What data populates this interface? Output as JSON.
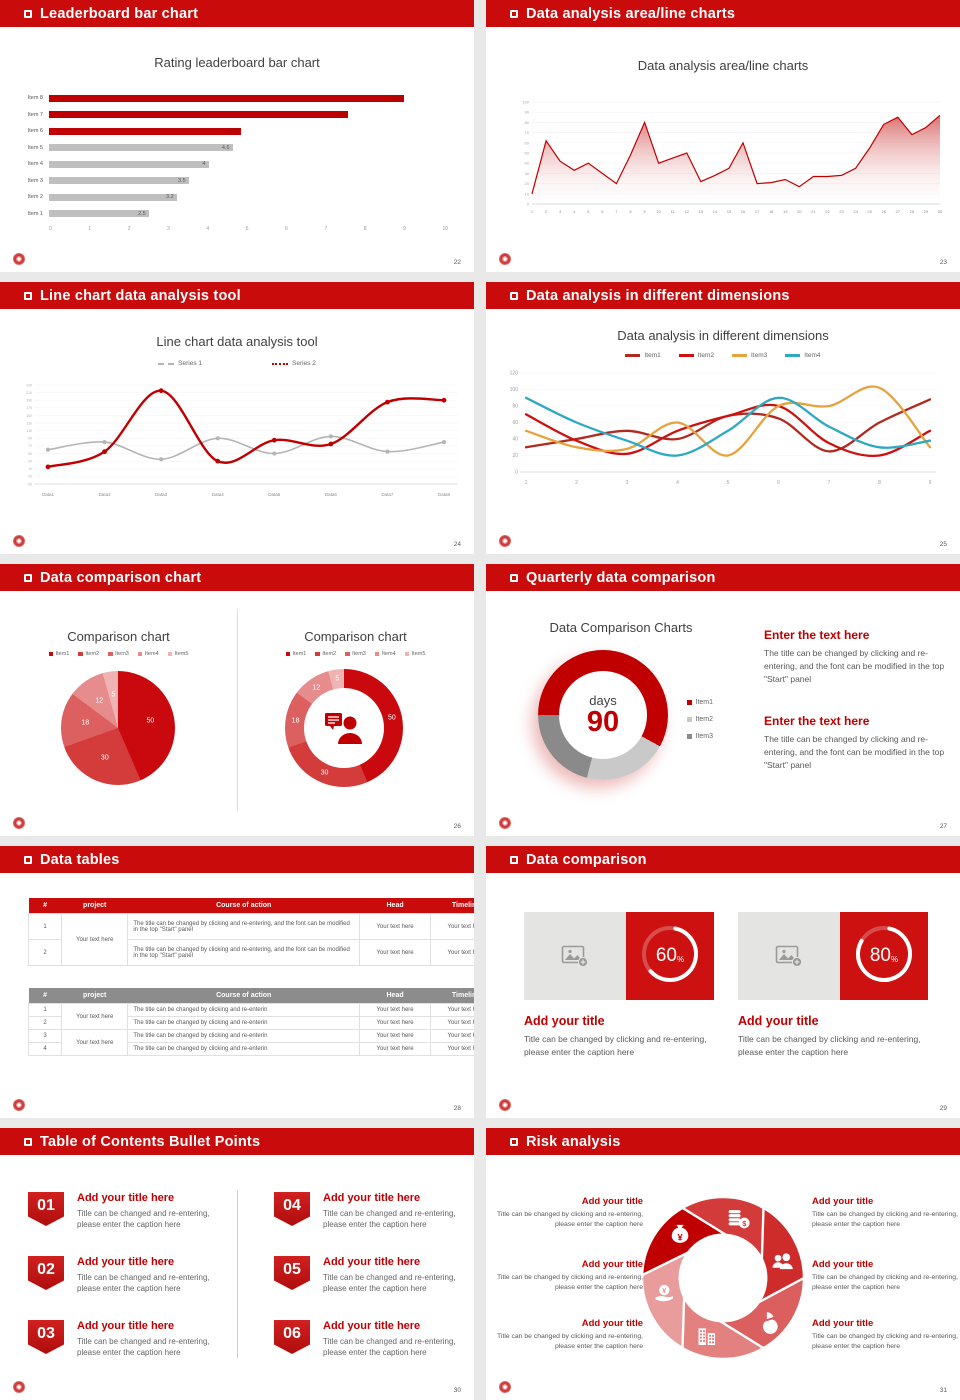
{
  "accent": "#c00000",
  "header_red": "#c90b0b",
  "slides": {
    "leaderboard": {
      "header": "Leaderboard bar chart",
      "page": "22"
    },
    "area": {
      "header": "Data analysis area/line charts",
      "page": "23"
    },
    "linechart": {
      "header": "Line chart data analysis tool",
      "page": "24"
    },
    "dimensions": {
      "header": "Data analysis in different dimensions",
      "page": "25"
    },
    "comparison": {
      "header": "Data comparison chart",
      "page": "26"
    },
    "quarterly": {
      "header": "Quarterly data comparison",
      "page": "27",
      "blocks": [
        {
          "heading": "Enter the text here",
          "body": "The title can be changed by clicking and re-entering, and the font can be modified in the top \"Start\" panel"
        },
        {
          "heading": "Enter the text here",
          "body": "The title can be changed by clicking and re-entering, and the font can be modified in the top \"Start\" panel"
        }
      ]
    },
    "tables": {
      "header": "Data tables",
      "page": "28",
      "columns": [
        "#",
        "project",
        "Course of action",
        "Head",
        "Timeline"
      ],
      "t1": {
        "nums": [
          "1",
          "2"
        ],
        "project": "Your text here",
        "course": "The title can be changed by clicking and re-entering, and the font can be modified in the top \"Start\" panel",
        "cell": "Your text here"
      },
      "t2": {
        "nums": [
          "1",
          "2",
          "3",
          "4"
        ],
        "project": "Your text here",
        "course": "The title can be changed by clicking and re-enterin",
        "cell": "Your text here"
      }
    },
    "datacomp": {
      "header": "Data comparison",
      "page": "29",
      "cards": [
        {
          "percent": "60",
          "unit": "%",
          "title": "Add your title",
          "caption": "Title can be changed by clicking and re-entering, please enter the caption here"
        },
        {
          "percent": "80",
          "unit": "%",
          "title": "Add your title",
          "caption": "Title can be changed by clicking and re-entering, please enter the caption here"
        }
      ]
    },
    "toc": {
      "header": "Table of Contents Bullet Points",
      "page": "30",
      "item_title": "Add your title here",
      "caption": "Title can be changed and re-entering, please enter the caption here",
      "items": [
        {
          "num": "01"
        },
        {
          "num": "02"
        },
        {
          "num": "03"
        },
        {
          "num": "04"
        },
        {
          "num": "05"
        },
        {
          "num": "06"
        }
      ]
    },
    "risk": {
      "header": "Risk analysis",
      "page": "31",
      "block_title": "Add your title",
      "caption": "Title can be changed by clicking and re-entering, please enter the caption here",
      "icons": [
        "money-bag",
        "coins",
        "people-group",
        "pie-chart",
        "building",
        "hand-coin"
      ]
    }
  },
  "chart_data": [
    {
      "type": "bar",
      "orientation": "horizontal",
      "title": "Rating leaderboard bar chart",
      "categories": [
        "Item 8",
        "Item 7",
        "Item 6",
        "Item 5",
        "Item 4",
        "Item 3",
        "Item 2",
        "Item 1"
      ],
      "values": [
        8.9,
        7.5,
        4.8,
        4.6,
        4,
        3.5,
        3.2,
        2.5
      ],
      "bar_colors": [
        "#c00000",
        "#c00000",
        "#c00000",
        "#bfbfbf",
        "#bfbfbf",
        "#bfbfbf",
        "#bfbfbf",
        "#bfbfbf"
      ],
      "xlim": [
        0,
        10
      ],
      "xticks": [
        0,
        1,
        2,
        3,
        4,
        5,
        6,
        7,
        8,
        9,
        10
      ]
    },
    {
      "type": "area",
      "title": "Data analysis area/line charts",
      "x": [
        1,
        2,
        3,
        4,
        5,
        6,
        7,
        8,
        9,
        10,
        11,
        12,
        13,
        14,
        15,
        16,
        17,
        18,
        19,
        20,
        21,
        22,
        23,
        24,
        25,
        26,
        27,
        28,
        29,
        30
      ],
      "values": [
        10,
        62,
        42,
        33,
        40,
        30,
        20,
        48,
        80,
        40,
        45,
        50,
        22,
        28,
        35,
        60,
        20,
        21,
        24,
        17,
        27,
        27,
        28,
        35,
        55,
        78,
        85,
        68,
        75,
        87
      ],
      "ylim": [
        0,
        100
      ],
      "ytick_step": 10,
      "line_color": "#c00000",
      "fill_from": "#d96a6a"
    },
    {
      "type": "line",
      "title": "Line chart data analysis tool",
      "categories": [
        "Data1",
        "Data2",
        "Data3",
        "Data4",
        "Data5",
        "Data6",
        "Data7",
        "Data8"
      ],
      "series": [
        {
          "name": "Series 1",
          "color": "#b5b5b5",
          "values": [
            60,
            80,
            35,
            90,
            50,
            95,
            55,
            80
          ]
        },
        {
          "name": "Series 2",
          "color": "#c00000",
          "values": [
            15,
            55,
            215,
            30,
            85,
            75,
            185,
            190
          ]
        }
      ],
      "ylim": [
        -30,
        230
      ],
      "ytick_step": 20
    },
    {
      "type": "line",
      "title": "Data analysis in different dimensions",
      "x": [
        1,
        2,
        3,
        4,
        5,
        6,
        7,
        8,
        9
      ],
      "series": [
        {
          "name": "Item1",
          "color": "#b02a20",
          "values": [
            30,
            40,
            50,
            40,
            68,
            65,
            25,
            60,
            88
          ]
        },
        {
          "name": "Item2",
          "color": "#cc1111",
          "values": [
            70,
            38,
            22,
            50,
            68,
            80,
            35,
            20,
            50
          ]
        },
        {
          "name": "Item3",
          "color": "#e6a23c",
          "values": [
            50,
            30,
            28,
            60,
            20,
            80,
            80,
            102,
            30
          ]
        },
        {
          "name": "Item4",
          "color": "#2fa8c2",
          "values": [
            90,
            60,
            38,
            20,
            50,
            90,
            55,
            30,
            38
          ]
        }
      ],
      "ylim": [
        0,
        120
      ],
      "ytick_step": 20
    },
    {
      "type": "pie",
      "title_left": "Comparison chart",
      "title_right": "Comparison chart",
      "labels": [
        "Item1",
        "Item2",
        "Item3",
        "Item4",
        "Item5"
      ],
      "values": [
        50,
        30,
        18,
        12,
        5
      ],
      "colors": [
        "#c9090e",
        "#d43c3c",
        "#dd6060",
        "#e68c8c",
        "#f0b3b3"
      ],
      "variants": [
        "pie",
        "donut"
      ]
    },
    {
      "type": "donut",
      "title": "Data Comparison Charts",
      "labels": [
        "Item1",
        "Item2",
        "Item3"
      ],
      "values": [
        58,
        21,
        21
      ],
      "colors": [
        "#c00000",
        "#c9c9c9",
        "#8a8a8a"
      ],
      "center": {
        "label": "days",
        "value": "90"
      },
      "conic_stops": [
        [
          "#c00000",
          0,
          33
        ],
        [
          "#c9c9c9",
          33,
          54
        ],
        [
          "#8a8a8a",
          54,
          75
        ],
        [
          "#c00000",
          75,
          100
        ]
      ]
    },
    {
      "type": "progress-ring",
      "values": [
        60,
        80
      ],
      "unit": "%"
    }
  ]
}
